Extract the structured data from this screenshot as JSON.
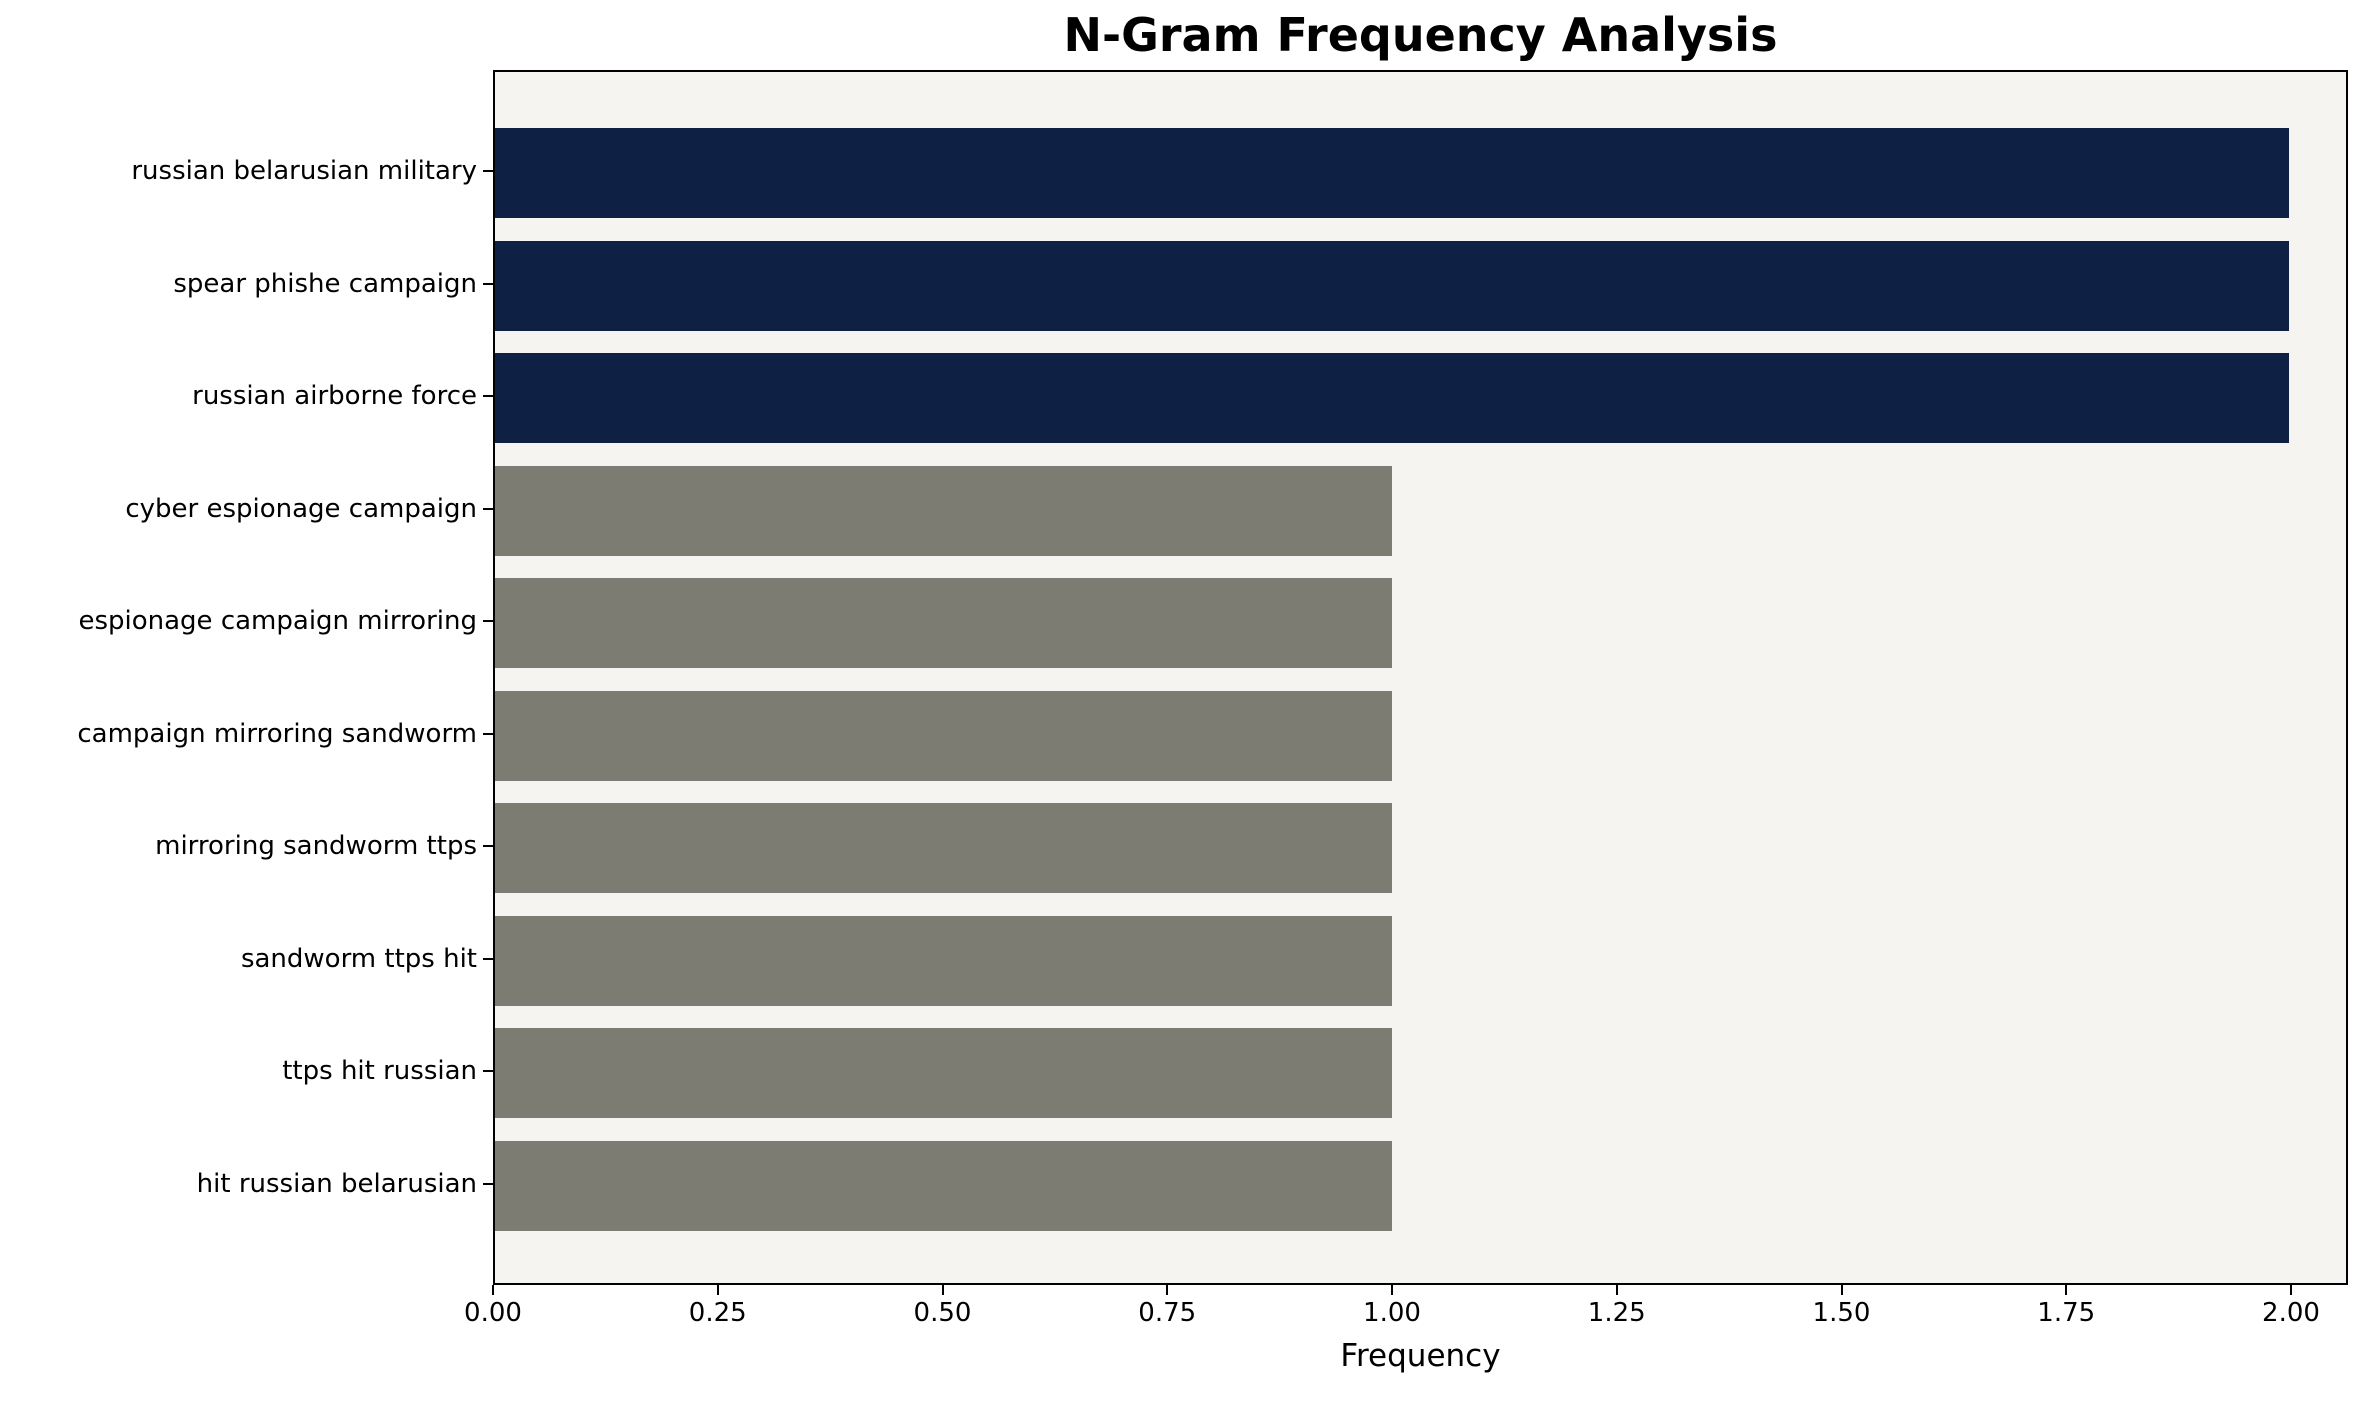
{
  "title": "N-Gram Frequency Analysis",
  "colors": {
    "highlight_bar": "#0e2144",
    "default_bar": "#7d7c73",
    "plot_background": "#f5f4f1",
    "page_background": "#ffffff",
    "axis": "#000000"
  },
  "chart_data": {
    "type": "bar",
    "orientation": "horizontal",
    "title": "N-Gram Frequency Analysis",
    "xlabel": "Frequency",
    "ylabel": "",
    "xlim": [
      0,
      2.0634
    ],
    "x_ticks": [
      0.0,
      0.25,
      0.5,
      0.75,
      1.0,
      1.25,
      1.5,
      1.75,
      2.0
    ],
    "x_tick_labels": [
      "0.00",
      "0.25",
      "0.50",
      "0.75",
      "1.00",
      "1.25",
      "1.50",
      "1.75",
      "2.00"
    ],
    "grid": false,
    "legend_position": "none",
    "categories": [
      "russian belarusian military",
      "spear phishe campaign",
      "russian airborne force",
      "cyber espionage campaign",
      "espionage campaign mirroring",
      "campaign mirroring sandworm",
      "mirroring sandworm ttps",
      "sandworm ttps hit",
      "ttps hit russian",
      "hit russian belarusian"
    ],
    "values": [
      2,
      2,
      2,
      1,
      1,
      1,
      1,
      1,
      1,
      1
    ],
    "bar_colors": [
      "#0e2144",
      "#0e2144",
      "#0e2144",
      "#7d7c73",
      "#7d7c73",
      "#7d7c73",
      "#7d7c73",
      "#7d7c73",
      "#7d7c73",
      "#7d7c73"
    ]
  }
}
